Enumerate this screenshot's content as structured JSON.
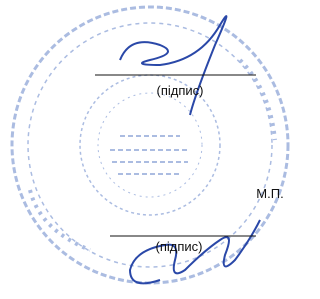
{
  "signatures": [
    {
      "caption": "(підпис)"
    },
    {
      "caption": "(підпис)"
    }
  ],
  "seal_mark": "М.П."
}
